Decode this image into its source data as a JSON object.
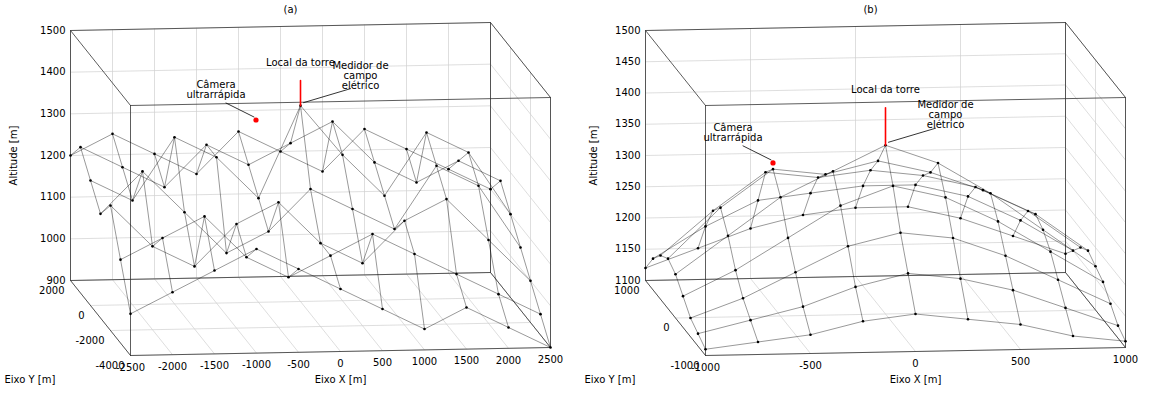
{
  "chart_data": [
    {
      "type": "scatter3d",
      "title": "(a)",
      "x_label": "Eixo X [m]",
      "y_label": "Eixo Y [m]",
      "z_label": "Altitude [m]",
      "xlim": [
        -2500,
        2500
      ],
      "xticks": [
        -2500,
        -2000,
        -1500,
        -1000,
        -500,
        0,
        500,
        1000,
        1500,
        2000,
        2500
      ],
      "ylim": [
        -4000,
        2000
      ],
      "yticks": [
        -4000,
        -2000,
        0,
        2000
      ],
      "zlim": [
        900,
        1500
      ],
      "zticks": [
        900,
        1000,
        1100,
        1200,
        1300,
        1400,
        1500
      ],
      "grid": true,
      "color": "#000000",
      "marker": "dot",
      "x": [
        -2500,
        -2000,
        -1500,
        -1000,
        -500,
        0,
        500,
        1000,
        1500,
        2000,
        2500
      ],
      "y": [
        -4000,
        -3000,
        -2000,
        -1000,
        0,
        1000,
        2000
      ],
      "z": [
        [
          1000,
          1050,
          1100,
          1150,
          1100,
          1050,
          1000,
          950,
          1000,
          950,
          900
        ],
        [
          1100,
          1150,
          1200,
          1100,
          1050,
          1100,
          1150,
          1100,
          1050,
          1000,
          950
        ],
        [
          1200,
          1100,
          1050,
          1150,
          1200,
          1100,
          1050,
          1150,
          1200,
          1100,
          1000
        ],
        [
          1150,
          1250,
          1150,
          1050,
          1100,
          1200,
          1150,
          1100,
          1250,
          1200,
          1050
        ],
        [
          1200,
          1150,
          1300,
          1250,
          1150,
          1370,
          1250,
          1150,
          1300,
          1250,
          1100
        ],
        [
          1250,
          1200,
          1150,
          1250,
          1200,
          1250,
          1300,
          1200,
          1150,
          1200,
          1150
        ],
        [
          1200,
          1250,
          1200,
          1150,
          1250,
          1200,
          1150,
          1250,
          1200,
          1150,
          1100
        ]
      ],
      "tower": {
        "x": 0,
        "y": 0,
        "z": [
          1370,
          1430
        ],
        "color": "#ff0000"
      },
      "annotations": [
        {
          "text": "Câmera ultrarrápida",
          "x": -500,
          "y": 250,
          "z": 1330,
          "marker": "dot",
          "color": "#ff0000"
        },
        {
          "text": "Local da torre",
          "x": 0,
          "y": 0,
          "z": 1430
        },
        {
          "text": "Medidor de campo elétrico",
          "x": 0,
          "y": 0,
          "z": 1370
        }
      ]
    },
    {
      "type": "scatter3d",
      "title": "(b)",
      "x_label": "Eixo X [m]",
      "y_label": "Eixo Y [m]",
      "z_label": "Altitude [m]",
      "xlim": [
        -1000,
        1000
      ],
      "xticks": [
        -1000,
        -500,
        0,
        500,
        1000
      ],
      "ylim": [
        -1000,
        1000
      ],
      "yticks": [
        -1000,
        0,
        1000
      ],
      "zlim": [
        1100,
        1500
      ],
      "zticks": [
        1100,
        1150,
        1200,
        1250,
        1300,
        1350,
        1400,
        1450,
        1500
      ],
      "grid": true,
      "color": "#000000",
      "marker": "dot",
      "x": [
        -1000,
        -750,
        -500,
        -250,
        0,
        250,
        500,
        750,
        1000
      ],
      "y": [
        -1000,
        -750,
        -500,
        -250,
        0,
        250,
        500,
        750,
        1000
      ],
      "z": [
        [
          1110,
          1120,
          1130,
          1150,
          1160,
          1150,
          1140,
          1120,
          1110
        ],
        [
          1120,
          1140,
          1160,
          1190,
          1210,
          1200,
          1180,
          1150,
          1120
        ],
        [
          1130,
          1160,
          1200,
          1240,
          1260,
          1250,
          1220,
          1180,
          1140
        ],
        [
          1150,
          1190,
          1240,
          1290,
          1320,
          1300,
          1260,
          1210,
          1160
        ],
        [
          1170,
          1230,
          1290,
          1330,
          1370,
          1340,
          1290,
          1230,
          1170
        ],
        [
          1180,
          1260,
          1320,
          1310,
          1330,
          1310,
          1280,
          1240,
          1180
        ],
        [
          1170,
          1240,
          1300,
          1290,
          1300,
          1290,
          1270,
          1230,
          1170
        ],
        [
          1150,
          1200,
          1240,
          1250,
          1260,
          1260,
          1240,
          1200,
          1150
        ],
        [
          1120,
          1150,
          1180,
          1200,
          1210,
          1210,
          1190,
          1160,
          1130
        ]
      ],
      "tower": {
        "x": 0,
        "y": 0,
        "z": [
          1370,
          1430
        ],
        "color": "#ff0000"
      },
      "annotations": [
        {
          "text": "Câmera ultrarrápida",
          "x": -500,
          "y": 250,
          "z": 1330,
          "marker": "dot",
          "color": "#ff0000"
        },
        {
          "text": "Local da torre",
          "x": 0,
          "y": 0,
          "z": 1430
        },
        {
          "text": "Medidor de campo elétrico",
          "x": 0,
          "y": 0,
          "z": 1370
        }
      ]
    }
  ]
}
